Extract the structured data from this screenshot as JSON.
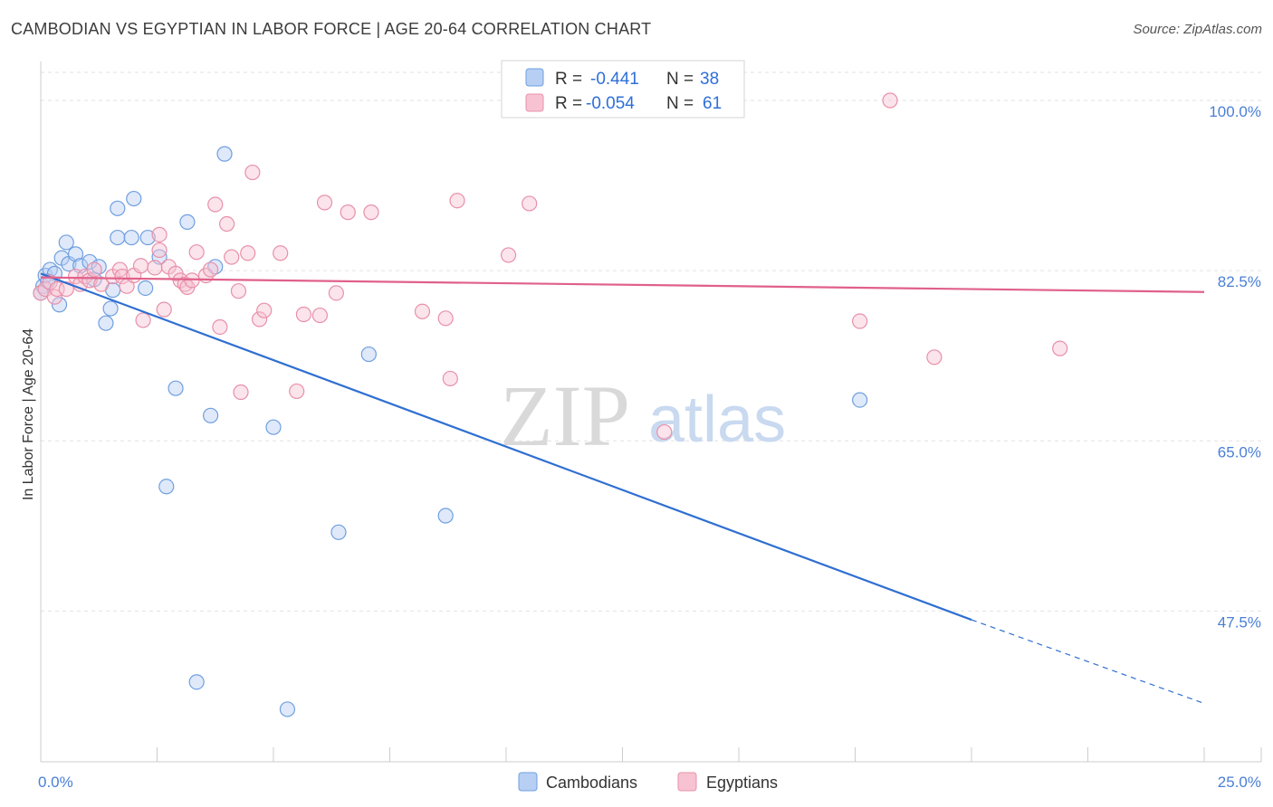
{
  "header": {
    "title": "CAMBODIAN VS EGYPTIAN IN LABOR FORCE | AGE 20-64 CORRELATION CHART",
    "source": "Source: ZipAtlas.com"
  },
  "watermark": {
    "zip": "ZIP",
    "atlas": "atlas"
  },
  "legend": {
    "r_label": "R =",
    "n_label": "N =",
    "items": [
      {
        "r": "-0.441",
        "n": "38",
        "color": "#a9c6f0"
      },
      {
        "r": "-0.054",
        "n": "61",
        "color": "#f5b6c9"
      }
    ]
  },
  "bottom_legend": [
    {
      "label": "Cambodians",
      "color": "#a9c6f0"
    },
    {
      "label": "Egyptians",
      "color": "#f5b6c9"
    }
  ],
  "chart_data": {
    "type": "scatter",
    "title": "CAMBODIAN VS EGYPTIAN IN LABOR FORCE | AGE 20-64 CORRELATION CHART",
    "xlabel": "",
    "ylabel": "In Labor Force | Age 20-64",
    "xlim": [
      0,
      25
    ],
    "ylim": [
      32,
      104
    ],
    "x_tick_labels": [
      {
        "value": 0,
        "label": "0.0%"
      },
      {
        "value": 25,
        "label": "25.0%"
      }
    ],
    "y_tick_labels": [
      {
        "value": 100,
        "label": "100.0%"
      },
      {
        "value": 82.5,
        "label": "82.5%"
      },
      {
        "value": 65,
        "label": "65.0%"
      },
      {
        "value": 47.5,
        "label": "47.5%"
      }
    ],
    "grid": "horizontal dashed",
    "series": [
      {
        "name": "Cambodians",
        "color": "#6f9fe0",
        "fill": "#b7cff3",
        "line_color": "#2f6fd1",
        "trend": {
          "x0": 0,
          "y0": 82.2,
          "x1": 20,
          "y1": 46.6,
          "dash_to_x": 25,
          "dash_to_y": 38
        },
        "points": [
          [
            0.05,
            80.9
          ],
          [
            0.1,
            82.0
          ],
          [
            0.2,
            82.6
          ],
          [
            0.3,
            82.2
          ],
          [
            0.4,
            79.0
          ],
          [
            0.45,
            83.8
          ],
          [
            0.55,
            85.4
          ],
          [
            0.6,
            83.2
          ],
          [
            0.75,
            84.2
          ],
          [
            0.85,
            83.0
          ],
          [
            1.05,
            83.4
          ],
          [
            1.15,
            81.6
          ],
          [
            1.25,
            82.9
          ],
          [
            1.4,
            77.1
          ],
          [
            1.5,
            78.6
          ],
          [
            1.55,
            80.5
          ],
          [
            1.65,
            88.9
          ],
          [
            1.65,
            85.9
          ],
          [
            1.95,
            85.9
          ],
          [
            2.0,
            89.9
          ],
          [
            2.25,
            80.7
          ],
          [
            2.3,
            85.9
          ],
          [
            2.55,
            83.9
          ],
          [
            2.7,
            60.3
          ],
          [
            2.9,
            70.4
          ],
          [
            3.15,
            87.5
          ],
          [
            3.35,
            40.2
          ],
          [
            3.65,
            67.6
          ],
          [
            3.75,
            82.9
          ],
          [
            3.95,
            94.5
          ],
          [
            5.0,
            66.4
          ],
          [
            5.3,
            37.4
          ],
          [
            6.4,
            55.6
          ],
          [
            7.05,
            73.9
          ],
          [
            8.7,
            57.3
          ],
          [
            17.6,
            69.2
          ],
          [
            0.0,
            80.2
          ],
          [
            0.15,
            81.4
          ]
        ]
      },
      {
        "name": "Egyptians",
        "color": "#e890aa",
        "fill": "#f7c3d2",
        "line_color": "#e0608a",
        "trend": {
          "x0": 0,
          "y0": 81.8,
          "x1": 25,
          "y1": 80.3
        },
        "points": [
          [
            0.0,
            80.2
          ],
          [
            0.1,
            80.6
          ],
          [
            0.2,
            81.3
          ],
          [
            0.3,
            79.8
          ],
          [
            0.35,
            80.6
          ],
          [
            0.55,
            80.6
          ],
          [
            0.75,
            81.9
          ],
          [
            0.85,
            81.1
          ],
          [
            0.95,
            81.9
          ],
          [
            1.05,
            81.5
          ],
          [
            1.15,
            82.6
          ],
          [
            1.3,
            81.1
          ],
          [
            1.55,
            81.9
          ],
          [
            1.7,
            82.6
          ],
          [
            1.75,
            81.9
          ],
          [
            1.85,
            80.9
          ],
          [
            2.0,
            82.0
          ],
          [
            2.15,
            83.0
          ],
          [
            2.2,
            77.4
          ],
          [
            2.45,
            82.8
          ],
          [
            2.55,
            84.6
          ],
          [
            2.55,
            86.2
          ],
          [
            2.65,
            78.5
          ],
          [
            2.75,
            82.9
          ],
          [
            2.9,
            82.2
          ],
          [
            3.0,
            81.5
          ],
          [
            3.1,
            81.1
          ],
          [
            3.15,
            80.8
          ],
          [
            3.25,
            81.5
          ],
          [
            3.35,
            84.4
          ],
          [
            3.55,
            82.0
          ],
          [
            3.65,
            82.6
          ],
          [
            3.75,
            89.3
          ],
          [
            3.85,
            76.7
          ],
          [
            4.0,
            87.3
          ],
          [
            4.1,
            83.9
          ],
          [
            4.25,
            80.4
          ],
          [
            4.3,
            70.0
          ],
          [
            4.45,
            84.3
          ],
          [
            4.55,
            92.6
          ],
          [
            4.7,
            77.5
          ],
          [
            4.8,
            78.4
          ],
          [
            5.15,
            84.3
          ],
          [
            5.5,
            70.1
          ],
          [
            5.65,
            78.0
          ],
          [
            6.0,
            77.9
          ],
          [
            6.1,
            89.5
          ],
          [
            6.35,
            80.2
          ],
          [
            6.6,
            88.5
          ],
          [
            7.1,
            88.5
          ],
          [
            8.2,
            78.3
          ],
          [
            8.7,
            77.6
          ],
          [
            8.8,
            71.4
          ],
          [
            8.95,
            89.7
          ],
          [
            10.05,
            84.1
          ],
          [
            10.5,
            89.4
          ],
          [
            13.4,
            65.9
          ],
          [
            17.6,
            77.3
          ],
          [
            18.25,
            100.0
          ],
          [
            19.2,
            73.6
          ],
          [
            21.9,
            74.5
          ]
        ]
      }
    ]
  }
}
